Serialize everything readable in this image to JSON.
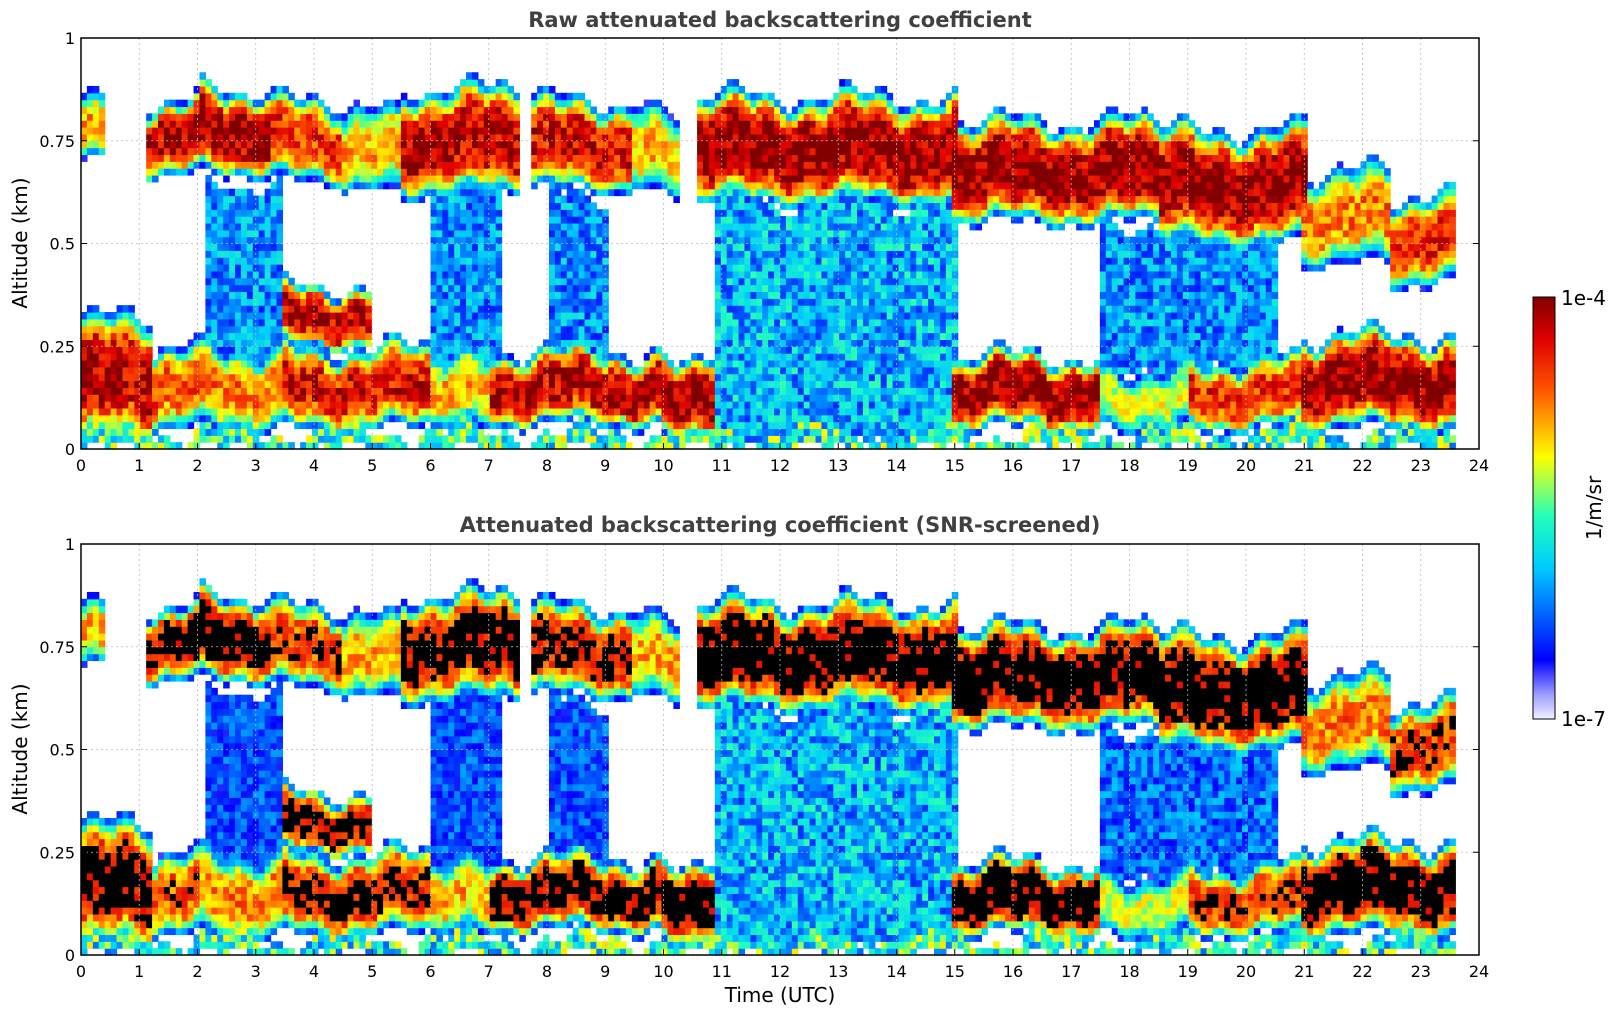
{
  "chart_data": [
    {
      "type": "heatmap",
      "title": "Raw attenuated backscattering coefficient",
      "xlabel": "",
      "ylabel": "Altitude (km)",
      "xlim": [
        0,
        24
      ],
      "ylim": [
        0,
        1
      ],
      "x_ticks": [
        "0",
        "1",
        "2",
        "3",
        "4",
        "5",
        "6",
        "7",
        "8",
        "9",
        "10",
        "11",
        "12",
        "13",
        "14",
        "15",
        "16",
        "17",
        "18",
        "19",
        "20",
        "21",
        "22",
        "23",
        "24"
      ],
      "y_ticks": [
        "0",
        "0.25",
        "0.5",
        "0.75",
        "1"
      ],
      "grid": true,
      "screened": false,
      "layers": [
        {
          "x": [
            0.05,
            0.45
          ],
          "y": [
            0.7,
            0.85
          ],
          "level": 0.7
        },
        {
          "x": [
            1.1,
            2.0
          ],
          "y": [
            0.67,
            0.85
          ],
          "level": 0.95
        },
        {
          "x": [
            2.0,
            3.3
          ],
          "y": [
            0.67,
            0.88
          ],
          "level": 1.0
        },
        {
          "x": [
            3.3,
            4.5
          ],
          "y": [
            0.65,
            0.85
          ],
          "level": 0.85
        },
        {
          "x": [
            4.5,
            5.5
          ],
          "y": [
            0.62,
            0.82
          ],
          "level": 0.7
        },
        {
          "x": [
            5.5,
            7.5
          ],
          "y": [
            0.62,
            0.88
          ],
          "level": 0.95
        },
        {
          "x": [
            7.7,
            9.5
          ],
          "y": [
            0.63,
            0.85
          ],
          "level": 0.9
        },
        {
          "x": [
            9.5,
            10.3
          ],
          "y": [
            0.62,
            0.82
          ],
          "level": 0.7
        },
        {
          "x": [
            10.6,
            15.0
          ],
          "y": [
            0.6,
            0.86
          ],
          "level": 1.0
        },
        {
          "x": [
            15.0,
            18.5
          ],
          "y": [
            0.55,
            0.8
          ],
          "level": 1.0
        },
        {
          "x": [
            18.5,
            21.0
          ],
          "y": [
            0.5,
            0.78
          ],
          "level": 1.0
        },
        {
          "x": [
            21.0,
            22.5
          ],
          "y": [
            0.45,
            0.68
          ],
          "level": 0.75
        },
        {
          "x": [
            22.5,
            23.55
          ],
          "y": [
            0.4,
            0.62
          ],
          "level": 0.85
        },
        {
          "x": [
            0.0,
            1.2
          ],
          "y": [
            0.02,
            0.32
          ],
          "level": 0.95
        },
        {
          "x": [
            1.2,
            2.0
          ],
          "y": [
            0.05,
            0.25
          ],
          "level": 0.8
        },
        {
          "x": [
            2.0,
            3.5
          ],
          "y": [
            0.05,
            0.25
          ],
          "level": 0.75
        },
        {
          "x": [
            3.5,
            5.0
          ],
          "y": [
            0.25,
            0.4
          ],
          "level": 0.95
        },
        {
          "x": [
            3.5,
            6.0
          ],
          "y": [
            0.05,
            0.25
          ],
          "level": 0.9
        },
        {
          "x": [
            6.0,
            7.0
          ],
          "y": [
            0.05,
            0.22
          ],
          "level": 0.7
        },
        {
          "x": [
            7.0,
            10.0
          ],
          "y": [
            0.06,
            0.24
          ],
          "level": 0.95
        },
        {
          "x": [
            10.0,
            10.9
          ],
          "y": [
            0.04,
            0.24
          ],
          "level": 1.0
        },
        {
          "x": [
            15.0,
            17.5
          ],
          "y": [
            0.05,
            0.23
          ],
          "level": 1.0
        },
        {
          "x": [
            17.5,
            19.0
          ],
          "y": [
            0.05,
            0.2
          ],
          "level": 0.6
        },
        {
          "x": [
            19.0,
            21.0
          ],
          "y": [
            0.05,
            0.22
          ],
          "level": 0.85
        },
        {
          "x": [
            21.0,
            23.55
          ],
          "y": [
            0.05,
            0.28
          ],
          "level": 1.0
        },
        {
          "x": [
            2.1,
            3.5
          ],
          "y": [
            0.2,
            0.65
          ],
          "level": 0.3
        },
        {
          "x": [
            6.0,
            7.2
          ],
          "y": [
            0.2,
            0.65
          ],
          "level": 0.3
        },
        {
          "x": [
            8.0,
            9.0
          ],
          "y": [
            0.2,
            0.62
          ],
          "level": 0.3
        },
        {
          "x": [
            10.9,
            15.0
          ],
          "y": [
            0.02,
            0.6
          ],
          "level": 0.34
        },
        {
          "x": [
            17.5,
            20.5
          ],
          "y": [
            0.2,
            0.55
          ],
          "level": 0.3
        },
        {
          "x": [
            0.0,
            23.55
          ],
          "y": [
            0.0,
            0.04
          ],
          "level": 0.45
        }
      ]
    },
    {
      "type": "heatmap",
      "title": "Attenuated backscattering coefficient (SNR-screened)",
      "xlabel": "Time (UTC)",
      "ylabel": "Altitude (km)",
      "xlim": [
        0,
        24
      ],
      "ylim": [
        0,
        1
      ],
      "x_ticks": [
        "0",
        "1",
        "2",
        "3",
        "4",
        "5",
        "6",
        "7",
        "8",
        "9",
        "10",
        "11",
        "12",
        "13",
        "14",
        "15",
        "16",
        "17",
        "18",
        "19",
        "20",
        "21",
        "22",
        "23",
        "24"
      ],
      "y_ticks": [
        "0",
        "0.25",
        "0.5",
        "0.75",
        "1"
      ],
      "grid": true,
      "screened": true,
      "layers": [
        {
          "x": [
            0.05,
            0.45
          ],
          "y": [
            0.7,
            0.85
          ],
          "level": 0.7
        },
        {
          "x": [
            1.1,
            2.0
          ],
          "y": [
            0.67,
            0.85
          ],
          "level": 0.95
        },
        {
          "x": [
            2.0,
            3.3
          ],
          "y": [
            0.67,
            0.88
          ],
          "level": 1.0
        },
        {
          "x": [
            3.3,
            4.5
          ],
          "y": [
            0.65,
            0.85
          ],
          "level": 0.85
        },
        {
          "x": [
            4.5,
            5.5
          ],
          "y": [
            0.62,
            0.82
          ],
          "level": 0.7
        },
        {
          "x": [
            5.5,
            7.5
          ],
          "y": [
            0.62,
            0.88
          ],
          "level": 0.95
        },
        {
          "x": [
            7.7,
            9.5
          ],
          "y": [
            0.63,
            0.85
          ],
          "level": 0.9
        },
        {
          "x": [
            9.5,
            10.3
          ],
          "y": [
            0.62,
            0.82
          ],
          "level": 0.7
        },
        {
          "x": [
            10.6,
            15.0
          ],
          "y": [
            0.6,
            0.86
          ],
          "level": 1.0
        },
        {
          "x": [
            15.0,
            18.5
          ],
          "y": [
            0.55,
            0.8
          ],
          "level": 1.0
        },
        {
          "x": [
            18.5,
            21.0
          ],
          "y": [
            0.5,
            0.78
          ],
          "level": 1.0
        },
        {
          "x": [
            21.0,
            22.5
          ],
          "y": [
            0.45,
            0.68
          ],
          "level": 0.75
        },
        {
          "x": [
            22.5,
            23.55
          ],
          "y": [
            0.4,
            0.62
          ],
          "level": 0.85
        },
        {
          "x": [
            0.0,
            1.2
          ],
          "y": [
            0.02,
            0.32
          ],
          "level": 0.95
        },
        {
          "x": [
            1.2,
            2.0
          ],
          "y": [
            0.05,
            0.25
          ],
          "level": 0.8
        },
        {
          "x": [
            2.0,
            3.5
          ],
          "y": [
            0.05,
            0.25
          ],
          "level": 0.75
        },
        {
          "x": [
            3.5,
            5.0
          ],
          "y": [
            0.25,
            0.4
          ],
          "level": 0.95
        },
        {
          "x": [
            3.5,
            6.0
          ],
          "y": [
            0.05,
            0.25
          ],
          "level": 0.9
        },
        {
          "x": [
            6.0,
            7.0
          ],
          "y": [
            0.05,
            0.22
          ],
          "level": 0.7
        },
        {
          "x": [
            7.0,
            10.0
          ],
          "y": [
            0.06,
            0.24
          ],
          "level": 0.95
        },
        {
          "x": [
            10.0,
            10.9
          ],
          "y": [
            0.04,
            0.24
          ],
          "level": 1.0
        },
        {
          "x": [
            15.0,
            17.5
          ],
          "y": [
            0.05,
            0.23
          ],
          "level": 1.0
        },
        {
          "x": [
            17.5,
            19.0
          ],
          "y": [
            0.05,
            0.2
          ],
          "level": 0.6
        },
        {
          "x": [
            19.0,
            21.0
          ],
          "y": [
            0.05,
            0.22
          ],
          "level": 0.85
        },
        {
          "x": [
            21.0,
            23.55
          ],
          "y": [
            0.05,
            0.28
          ],
          "level": 1.0
        },
        {
          "x": [
            2.1,
            3.5
          ],
          "y": [
            0.2,
            0.65
          ],
          "level": 0.22
        },
        {
          "x": [
            6.0,
            7.2
          ],
          "y": [
            0.2,
            0.65
          ],
          "level": 0.22
        },
        {
          "x": [
            8.0,
            9.0
          ],
          "y": [
            0.2,
            0.62
          ],
          "level": 0.22
        },
        {
          "x": [
            10.9,
            15.0
          ],
          "y": [
            0.02,
            0.6
          ],
          "level": 0.34
        },
        {
          "x": [
            17.5,
            20.5
          ],
          "y": [
            0.2,
            0.55
          ],
          "level": 0.25
        },
        {
          "x": [
            0.0,
            23.55
          ],
          "y": [
            0.0,
            0.04
          ],
          "level": 0.45
        }
      ]
    }
  ],
  "colorbar": {
    "label": "1/m/sr",
    "max_label": "1e-4",
    "min_label": "1e-7",
    "range": [
      1e-07,
      0.0001
    ],
    "scale": "log",
    "colormap": "jet"
  }
}
